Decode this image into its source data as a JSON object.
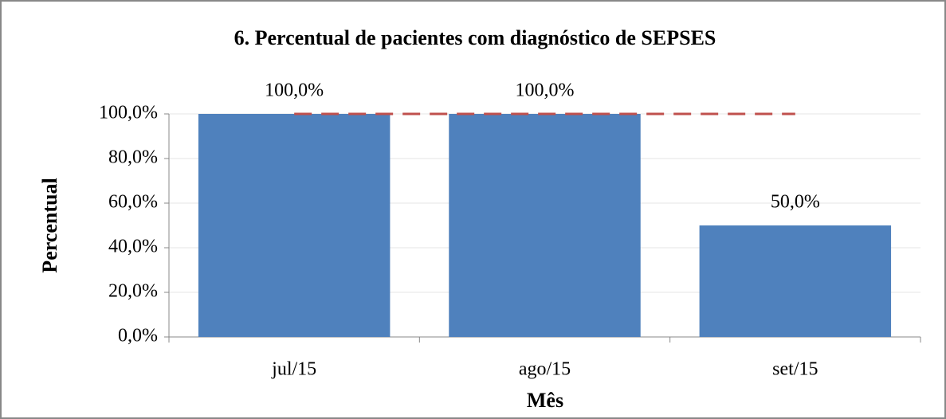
{
  "chart_data": {
    "type": "bar",
    "title": "6. Percentual de pacientes com diagnóstico de SEPSES",
    "xlabel": "Mês",
    "ylabel": "Percentual",
    "categories": [
      "jul/15",
      "ago/15",
      "set/15"
    ],
    "series": [
      {
        "type": "bar",
        "color": "#4f81bd",
        "values": [
          100,
          100,
          50
        ],
        "value_labels": [
          "100,0%",
          "100,0%",
          "50,0%"
        ]
      },
      {
        "type": "line",
        "color": "#c0504d",
        "dashed": true,
        "values": [
          100,
          100,
          100
        ]
      }
    ],
    "ylim": [
      0,
      100
    ],
    "yticks": [
      {
        "value": 0,
        "label": "0,0%"
      },
      {
        "value": 20,
        "label": "20,0%"
      },
      {
        "value": 40,
        "label": "40,0%"
      },
      {
        "value": 60,
        "label": "60,0%"
      },
      {
        "value": 80,
        "label": "80,0%"
      },
      {
        "value": 100,
        "label": "100,0%"
      }
    ],
    "grid": true
  }
}
